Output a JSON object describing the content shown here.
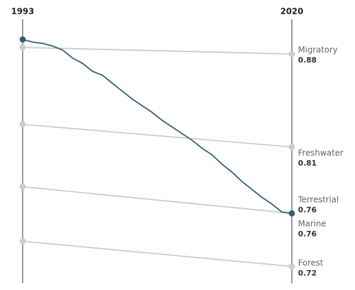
{
  "chart_data": {
    "type": "slope",
    "xlim": [
      1993,
      2020
    ],
    "xticks": [
      1993,
      2020
    ],
    "ylim": [
      0.71,
      0.9
    ],
    "series": [
      {
        "name": "Migratory",
        "color": "#cccccc",
        "x": [
          1993,
          2020
        ],
        "values": [
          0.885,
          0.88
        ]
      },
      {
        "name": "Freshwater",
        "color": "#cccccc",
        "x": [
          1993,
          2020
        ],
        "values": [
          0.827,
          0.81
        ]
      },
      {
        "name": "Terrestrial",
        "color": "#cccccc",
        "x": [
          1993,
          2020
        ],
        "values": [
          0.78,
          0.76
        ]
      },
      {
        "name": "Marine",
        "color": "#2e5f73",
        "x": [
          1993,
          1994,
          1995,
          1996,
          1997,
          1998,
          1999,
          2000,
          2001,
          2002,
          2003,
          2004,
          2005,
          2006,
          2007,
          2008,
          2009,
          2010,
          2011,
          2012,
          2013,
          2014,
          2015,
          2016,
          2017,
          2018,
          2019,
          2020
        ],
        "values": [
          0.891,
          0.889,
          0.888,
          0.886,
          0.883,
          0.877,
          0.873,
          0.867,
          0.864,
          0.858,
          0.852,
          0.846,
          0.841,
          0.836,
          0.83,
          0.825,
          0.82,
          0.815,
          0.809,
          0.804,
          0.797,
          0.791,
          0.784,
          0.778,
          0.772,
          0.767,
          0.761,
          0.76
        ]
      },
      {
        "name": "Forest",
        "color": "#cccccc",
        "x": [
          1993,
          2020
        ],
        "values": [
          0.739,
          0.72
        ]
      }
    ]
  }
}
